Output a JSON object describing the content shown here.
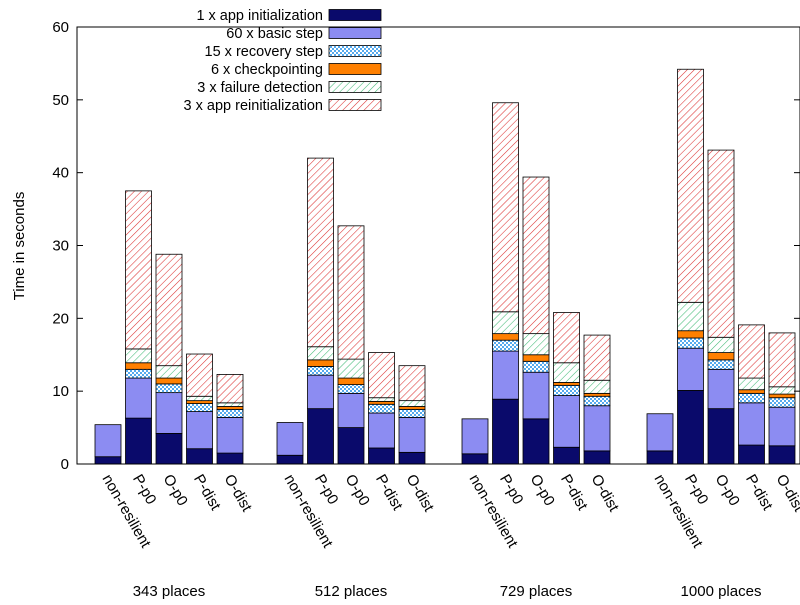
{
  "chart_data": {
    "type": "bar",
    "stacked": true,
    "ylabel": "Time in seconds",
    "xlabel": "",
    "ylim": [
      0,
      60
    ],
    "yticks": [
      0,
      10,
      20,
      30,
      40,
      50,
      60
    ],
    "grid": false,
    "legend_position": "top-center",
    "categories": [
      "non-resilient",
      "P-p0",
      "O-p0",
      "P-dist",
      "O-dist"
    ],
    "groups": [
      "343 places",
      "512 places",
      "729 places",
      "1000 places"
    ],
    "series": [
      {
        "name": "1 x app initialization",
        "color": "#0a0a6b",
        "fill": "solid",
        "values": [
          [
            1.0,
            6.3,
            4.2,
            2.1,
            1.5
          ],
          [
            1.2,
            7.6,
            5.0,
            2.2,
            1.6
          ],
          [
            1.4,
            8.9,
            6.2,
            2.3,
            1.8
          ],
          [
            1.8,
            10.1,
            7.6,
            2.6,
            2.5
          ]
        ]
      },
      {
        "name": "60 x basic step",
        "color": "#8c8cf2",
        "fill": "solid",
        "values": [
          [
            4.4,
            5.5,
            5.6,
            5.1,
            4.9
          ],
          [
            4.5,
            4.6,
            4.7,
            4.8,
            4.8
          ],
          [
            4.8,
            6.6,
            6.4,
            7.1,
            6.2
          ],
          [
            5.1,
            5.8,
            5.4,
            5.8,
            5.3
          ]
        ]
      },
      {
        "name": "15 x recovery step",
        "color": "#55aaee",
        "fill": "checker",
        "values": [
          [
            0,
            1.2,
            1.2,
            1.1,
            1.1
          ],
          [
            0,
            1.2,
            1.2,
            1.2,
            1.1
          ],
          [
            0,
            1.5,
            1.5,
            1.4,
            1.3
          ],
          [
            0,
            1.4,
            1.3,
            1.3,
            1.3
          ]
        ]
      },
      {
        "name": "6 x checkpointing",
        "color": "#ff8000",
        "fill": "solid",
        "values": [
          [
            0,
            0.9,
            0.8,
            0.4,
            0.4
          ],
          [
            0,
            0.9,
            0.9,
            0.4,
            0.4
          ],
          [
            0,
            0.9,
            0.9,
            0.4,
            0.4
          ],
          [
            0,
            1.0,
            1.0,
            0.5,
            0.5
          ]
        ]
      },
      {
        "name": "3 x failure detection",
        "color": "#44bb77",
        "fill": "diagonal",
        "values": [
          [
            0,
            1.9,
            1.7,
            0.6,
            0.5
          ],
          [
            0,
            1.8,
            2.6,
            0.5,
            0.8
          ],
          [
            0,
            3.0,
            2.9,
            2.7,
            1.8
          ],
          [
            0,
            3.9,
            2.1,
            1.6,
            1.0
          ]
        ]
      },
      {
        "name": "3 x app reinitialization",
        "color": "#dd3333",
        "fill": "diagonal",
        "values": [
          [
            0,
            21.7,
            15.3,
            5.8,
            3.9
          ],
          [
            0,
            25.9,
            18.3,
            6.2,
            4.8
          ],
          [
            0,
            28.7,
            21.5,
            6.9,
            6.2
          ],
          [
            0,
            32.0,
            25.7,
            7.3,
            7.4
          ]
        ]
      }
    ]
  }
}
